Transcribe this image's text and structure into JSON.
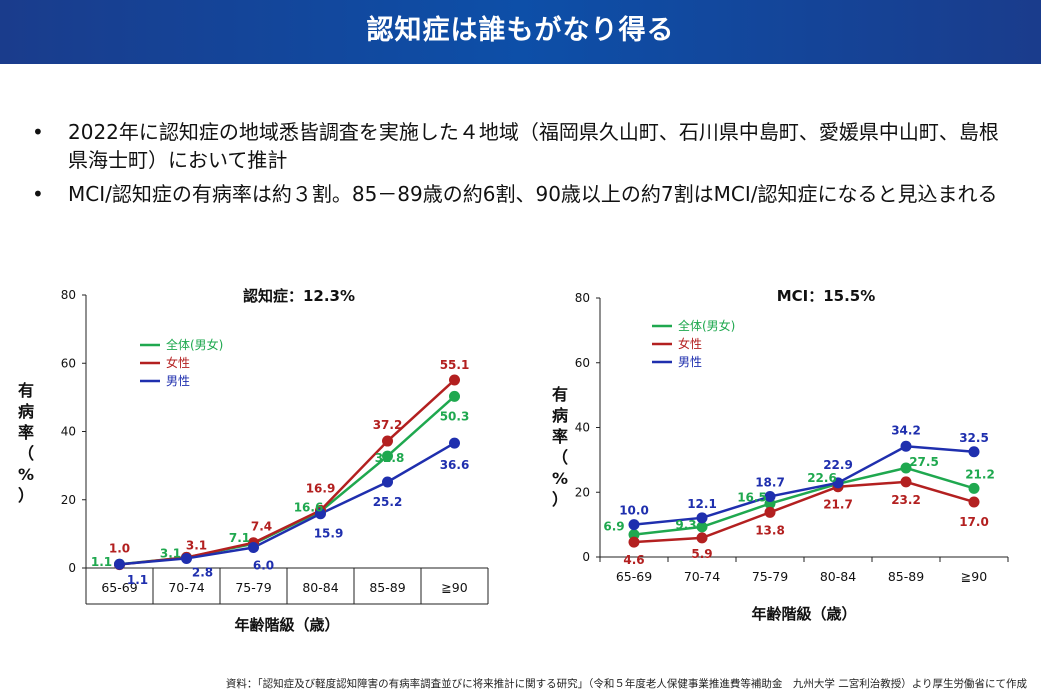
{
  "header": {
    "title": "認知症は誰もがなり得る"
  },
  "bullets": [
    "2022年に認知症の地域悉皆調査を実施した４地域（福岡県久山町、石川県中島町、愛媛県中山町、島根県海士町）において推計",
    "MCI/認知症の有病率は約３割。85－89歳の約6割、90歳以上の約7割はMCI/認知症になると見込まれる"
  ],
  "source": "資料：「認知症及び軽度認知障害の有病率調査並びに将来推計に関する研究」（令和５年度老人保健事業推進費等補助金　九州大学 二宮利治教授）より厚生労働省にて作成",
  "chart_data": [
    {
      "type": "line",
      "title": "認知症：12.3%",
      "xlabel": "年齢階級（歳）",
      "ylabel": "有病率（%）",
      "ylim": [
        0,
        80
      ],
      "yticks": [
        0,
        20,
        40,
        60,
        80
      ],
      "categories": [
        "65-69",
        "70-74",
        "75-79",
        "80-84",
        "85-89",
        "≧90"
      ],
      "legend_position": "top-left",
      "series": [
        {
          "name": "全体(男女)",
          "color": "#1fa84f",
          "values": [
            1.1,
            3.1,
            7.1,
            16.6,
            32.8,
            50.3
          ]
        },
        {
          "name": "女性",
          "color": "#b32020",
          "values": [
            1.0,
            3.1,
            7.4,
            16.9,
            37.2,
            55.1
          ]
        },
        {
          "name": "男性",
          "color": "#1f2fae",
          "values": [
            1.1,
            2.8,
            6.0,
            15.9,
            25.2,
            36.6
          ]
        }
      ]
    },
    {
      "type": "line",
      "title": "MCI：15.5%",
      "xlabel": "年齢階級（歳）",
      "ylabel": "有病率（%）",
      "ylim": [
        0,
        80
      ],
      "yticks": [
        0,
        20,
        40,
        60,
        80
      ],
      "categories": [
        "65-69",
        "70-74",
        "75-79",
        "80-84",
        "85-89",
        "≧90"
      ],
      "legend_position": "top-left",
      "series": [
        {
          "name": "全体(男女)",
          "color": "#1fa84f",
          "values": [
            6.9,
            9.3,
            16.5,
            22.6,
            27.5,
            21.2
          ]
        },
        {
          "name": "女性",
          "color": "#b32020",
          "values": [
            4.6,
            5.9,
            13.8,
            21.7,
            23.2,
            17.0
          ]
        },
        {
          "name": "男性",
          "color": "#1f2fae",
          "values": [
            10.0,
            12.1,
            18.7,
            22.9,
            34.2,
            32.5
          ]
        }
      ]
    }
  ]
}
